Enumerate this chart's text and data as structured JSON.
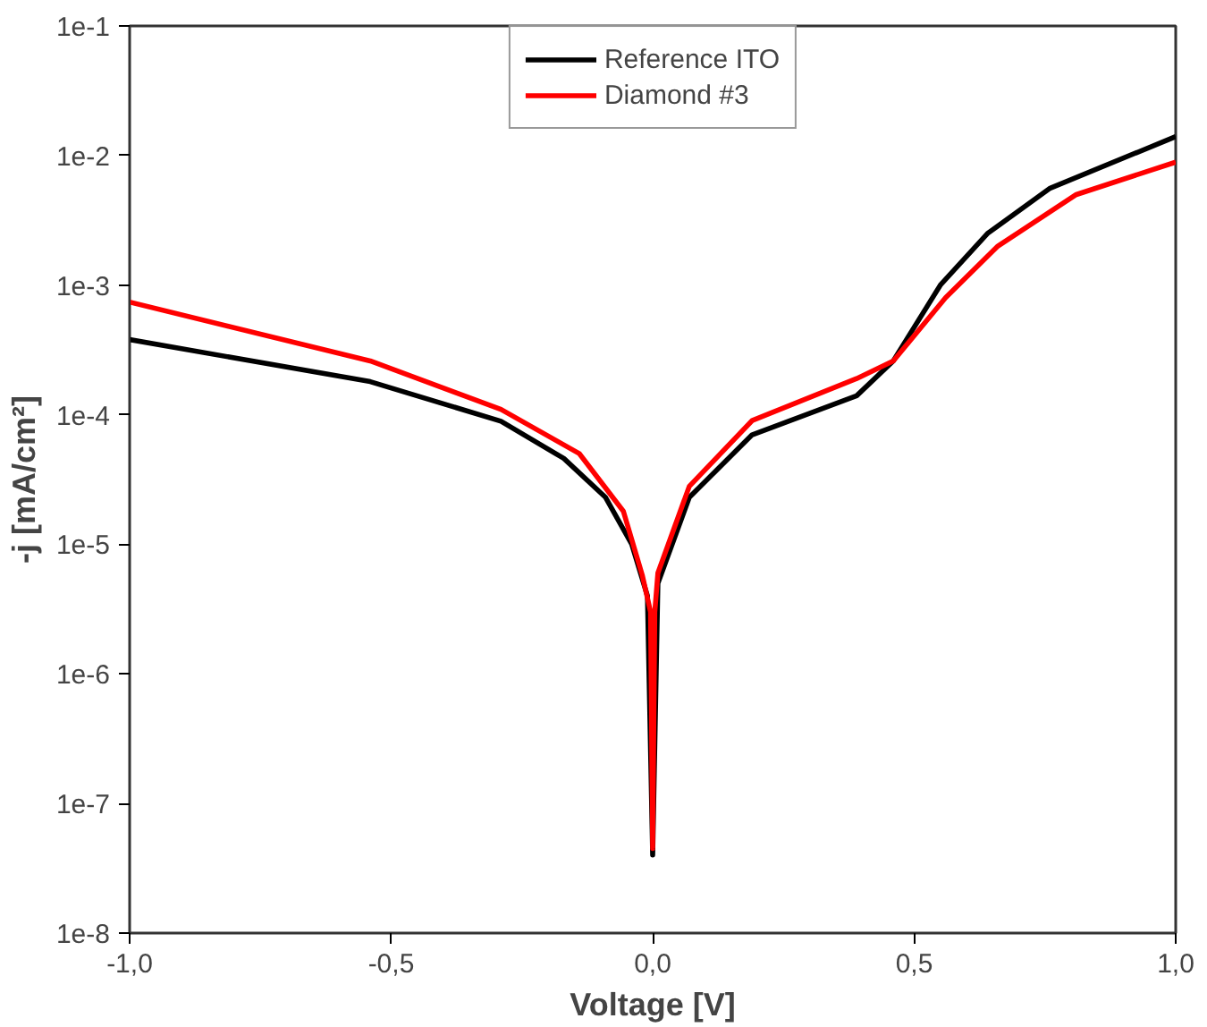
{
  "chart_data": {
    "type": "line",
    "xlabel": "Voltage [V]",
    "ylabel": "-j [mA/cm²]",
    "log": "y",
    "grid": false,
    "legend": "top",
    "line_style": "solid",
    "marker": "none",
    "xlim": [
      -1,
      1
    ],
    "ylim": [
      1e-08,
      0.1
    ],
    "xticks": [
      {
        "value": -1,
        "label": "-1,0"
      },
      {
        "value": -0.5,
        "label": "-0,5"
      },
      {
        "value": 0,
        "label": "0,0"
      },
      {
        "value": 0.5,
        "label": "0,5"
      },
      {
        "value": 1,
        "label": "1,0"
      }
    ],
    "yticks": [
      {
        "value": 1e-08,
        "label": "1e-8"
      },
      {
        "value": 1e-07,
        "label": "1e-7"
      },
      {
        "value": 1e-06,
        "label": "1e-6"
      },
      {
        "value": 1e-05,
        "label": "1e-5"
      },
      {
        "value": 0.0001,
        "label": "1e-4"
      },
      {
        "value": 0.001,
        "label": "1e-3"
      },
      {
        "value": 0.01,
        "label": "1e-2"
      },
      {
        "value": 0.1,
        "label": "1e-1"
      }
    ],
    "series": [
      {
        "name": "Reference ITO",
        "color": "#000000",
        "x": [
          -1,
          -0.54,
          -0.29,
          -0.17,
          -0.09,
          -0.04,
          -0.01,
          0,
          0.01,
          0.07,
          0.19,
          0.39,
          0.46,
          0.55,
          0.64,
          0.76,
          1.0
        ],
        "values": [
          0.00038,
          0.00018,
          8.9e-05,
          4.6e-05,
          2.3e-05,
          1e-05,
          4e-06,
          4e-08,
          5e-06,
          2.3e-05,
          7e-05,
          0.00014,
          0.00026,
          0.001,
          0.0025,
          0.0056,
          0.014
        ]
      },
      {
        "name": "Diamond #3",
        "color": "#ff0000",
        "x": [
          -1,
          -0.54,
          -0.29,
          -0.14,
          -0.056,
          -0.02,
          -0.004,
          0,
          0.004,
          0.01,
          0.07,
          0.19,
          0.39,
          0.46,
          0.56,
          0.66,
          0.81,
          1.0
        ],
        "values": [
          0.00074,
          0.00026,
          0.00011,
          5e-05,
          1.8e-05,
          5.8e-06,
          3e-06,
          4.5e-08,
          3e-06,
          6e-06,
          2.8e-05,
          9e-05,
          0.00019,
          0.00026,
          0.0008,
          0.002,
          0.005,
          0.0089
        ]
      }
    ]
  }
}
